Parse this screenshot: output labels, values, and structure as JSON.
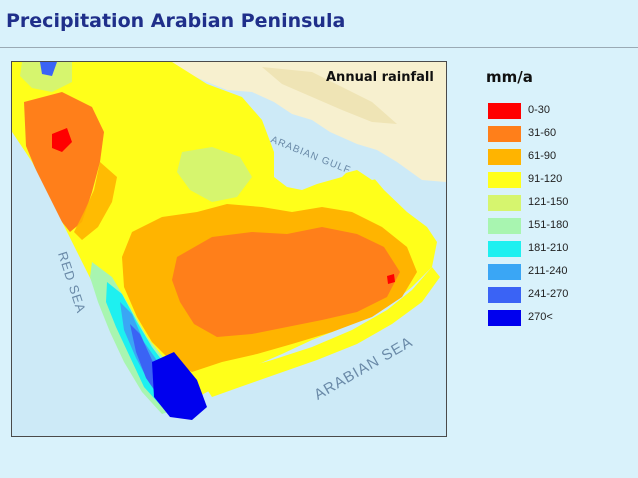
{
  "title": "Precipitation Arabian Peninsula",
  "map": {
    "caption": "Annual rainfall",
    "sea_labels": {
      "red_sea": "RED SEA",
      "arabian_gulf": "ARABIAN GULF",
      "arabian_sea": "ARABIAN SEA"
    }
  },
  "legend": {
    "unit": "mm/a",
    "items": [
      {
        "label": "0-30",
        "color": "#ff0000"
      },
      {
        "label": "31-60",
        "color": "#ff7f1a"
      },
      {
        "label": "61-90",
        "color": "#ffb400"
      },
      {
        "label": "91-120",
        "color": "#ffff1a"
      },
      {
        "label": "121-150",
        "color": "#d6f56e"
      },
      {
        "label": "151-180",
        "color": "#a8f5b0"
      },
      {
        "label": "181-210",
        "color": "#1ef0f0"
      },
      {
        "label": "211-240",
        "color": "#3aa6f5"
      },
      {
        "label": "241-270",
        "color": "#3a63f5"
      },
      {
        "label": "270<",
        "color": "#0000ee"
      }
    ],
    "land_color": "#f7f0cf",
    "sea_color": "#cdeaf7"
  }
}
